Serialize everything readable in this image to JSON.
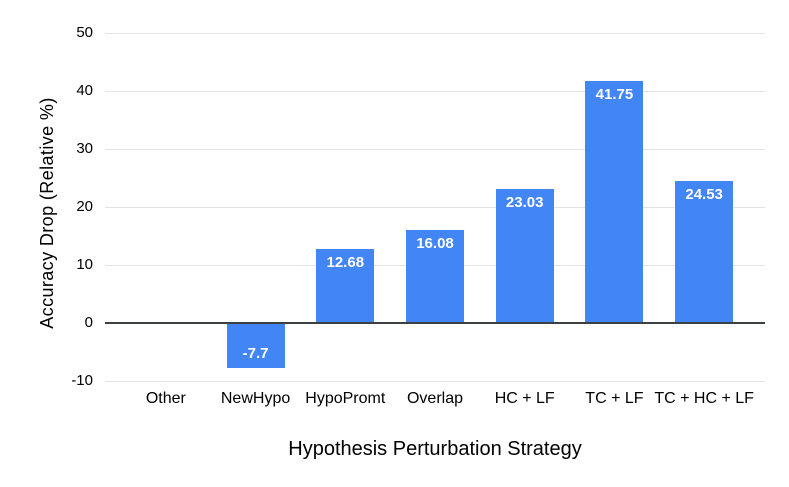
{
  "chart_data": {
    "type": "bar",
    "title": "",
    "xlabel": "Hypothesis Perturbation Strategy",
    "ylabel": "Accuracy Drop (Relative %)",
    "categories": [
      "Other",
      "NewHypo",
      "HypoPromt",
      "Overlap",
      "HC + LF",
      "TC + LF",
      "TC + HC + LF"
    ],
    "values": [
      0,
      -7.7,
      12.68,
      16.08,
      23.03,
      41.75,
      24.53
    ],
    "bar_value_labels": [
      "",
      "-7.7",
      "12.68",
      "16.08",
      "23.03",
      "41.75",
      "24.53"
    ],
    "yticks": [
      50,
      40,
      30,
      20,
      10,
      0,
      -10
    ],
    "ylim": [
      -10,
      50
    ],
    "grid": true,
    "legend_position": "none",
    "colors": {
      "bar": "#4285f4",
      "bar_label": "#ffffff",
      "gridline": "#e3e3e3",
      "zero_axis": "#3c4043",
      "text": "#000000",
      "background": "#ffffff"
    }
  }
}
